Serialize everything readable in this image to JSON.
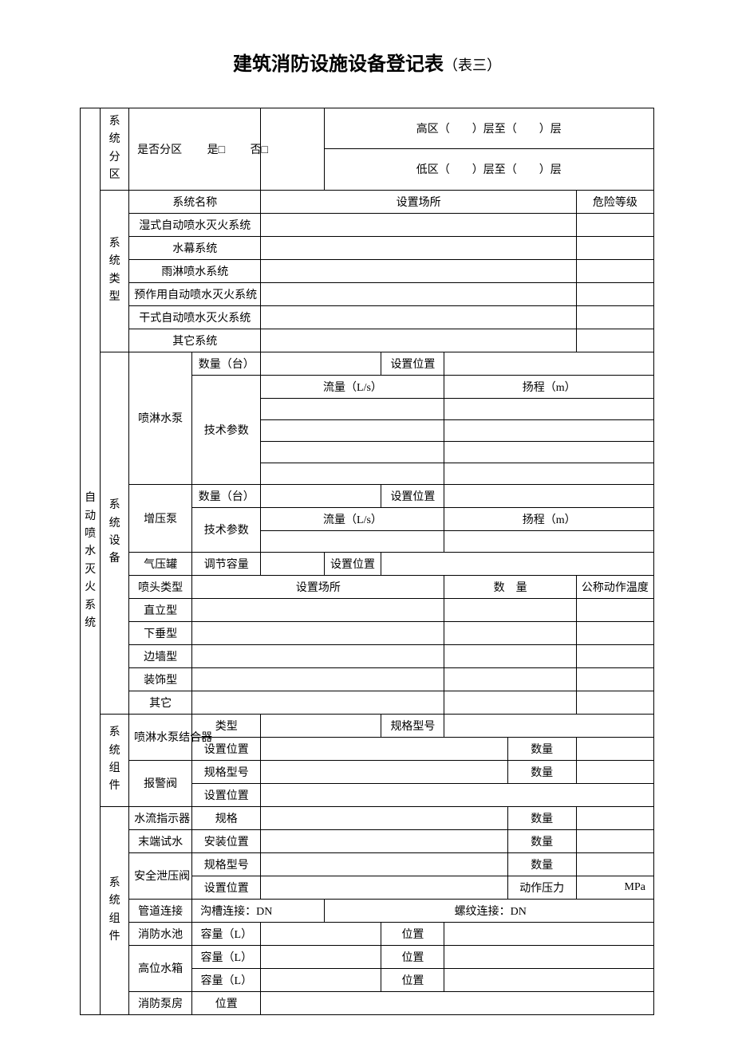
{
  "title_main": "建筑消防设施设备登记表",
  "title_sub": "（表三）",
  "side_main": "自动喷水灭火系统",
  "rows": {
    "sec_zone": "系统分区",
    "zone_q": "是否分区",
    "yes": "是□",
    "no": "否□",
    "hi_zone": "高区（　　）层至（　　）层",
    "lo_zone": "低区（　　）层至（　　）层",
    "sec_type": "系统类型",
    "sys_name": "系统名称",
    "place": "设置场所",
    "risk": "危险等级",
    "t1": "湿式自动喷水灭火系统",
    "t2": "水幕系统",
    "t3": "雨淋喷水系统",
    "t4": "预作用自动喷水灭火系统",
    "t5": "干式自动喷水灭火系统",
    "t6": "其它系统",
    "sec_dev": "系统设备",
    "pump": "喷淋水泵",
    "qty": "数量（台）",
    "pos": "设置位置",
    "techparam": "技术参数",
    "flow": "流量（L/s）",
    "head": "扬程（m）",
    "boost": "增压泵",
    "airtank": "气压罐",
    "adjcap": "调节容量",
    "nozzle_type": "喷头类型",
    "qty_plain": "数　量",
    "nom_temp": "公称动作温度",
    "n1": "直立型",
    "n2": "下垂型",
    "n3": "边墙型",
    "n4": "装饰型",
    "n5": "其它",
    "sec_comp": "系统组件",
    "spr_coupler": "喷淋水泵结合器",
    "type_lbl": "类型",
    "spec_model": "规格型号",
    "qty_lbl": "数量",
    "setpos": "设置位置",
    "alarm_valve": "报警阀",
    "sec_comp2": "系统组件",
    "flow_ind": "水流指示器",
    "spec": "规格",
    "end_test": "末端试水",
    "install_pos": "安装位置",
    "relief": "安全泄压阀",
    "act_press": "动作压力",
    "mpa": "MPa",
    "pipe_conn": "管道连接",
    "groove": "沟槽连接：DN",
    "thread": "螺纹连接：DN",
    "pool": "消防水池",
    "cap_l": "容量（L）",
    "pos_lbl": "位置",
    "hightank": "高位水箱",
    "pump_room": "消防泵房"
  }
}
